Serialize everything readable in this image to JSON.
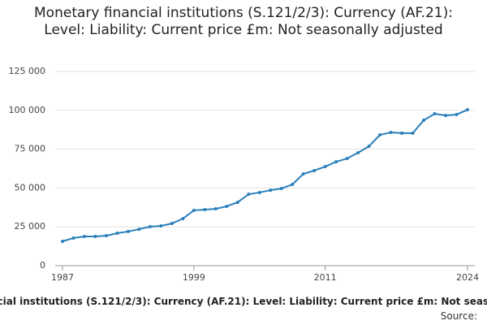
{
  "chart_data": {
    "type": "line",
    "title": "Monetary financial institutions (S.121/2/3): Currency (AF.21): Level: Liability: Current price £m: Not seasonally adjusted",
    "x": [
      1987,
      1988,
      1989,
      1990,
      1991,
      1992,
      1993,
      1994,
      1995,
      1996,
      1997,
      1998,
      1999,
      2000,
      2001,
      2002,
      2003,
      2004,
      2005,
      2006,
      2007,
      2008,
      2009,
      2010,
      2011,
      2012,
      2013,
      2014,
      2015,
      2016,
      2017,
      2018,
      2019,
      2020,
      2021,
      2022,
      2023,
      2024
    ],
    "series": [
      {
        "name": "Monetary financial institutions (S.121/2/3): Currency (AF.21): Level: Liability: Current price £m: Not seasonally adjusted",
        "color": "#2a7fbb",
        "values": [
          15700,
          17800,
          18800,
          18800,
          19300,
          20900,
          22000,
          23500,
          25100,
          25600,
          27200,
          30300,
          35600,
          36100,
          36600,
          38200,
          40800,
          46000,
          47100,
          48600,
          49700,
          52300,
          59100,
          61200,
          63800,
          66900,
          69000,
          72700,
          76900,
          84200,
          85800,
          85300,
          85300,
          93600,
          97800,
          96700,
          97300,
          100400
        ]
      }
    ],
    "xlim": [
      1987,
      2024
    ],
    "xticks": [
      1987,
      1999,
      2011,
      2024
    ],
    "ylim": [
      0,
      125000
    ],
    "yticks": [
      0,
      {
        "value": 25000,
        "label": "25 000"
      },
      {
        "value": 50000,
        "label": "50 000"
      },
      {
        "value": 75000,
        "label": "75 000"
      },
      {
        "value": 100000,
        "label": "100 000"
      },
      {
        "value": 125000,
        "label": "125 000"
      }
    ],
    "grid": true,
    "source": "Source:"
  }
}
